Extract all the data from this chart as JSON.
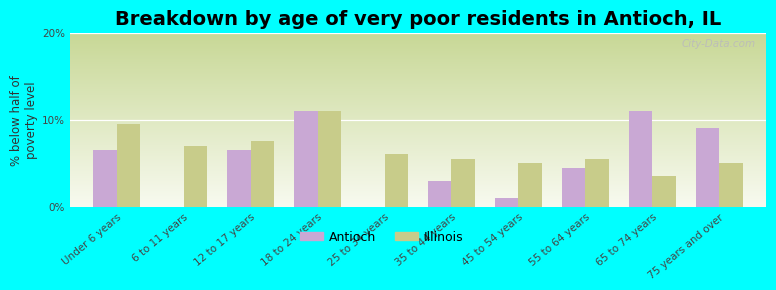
{
  "title": "Breakdown by age of very poor residents in Antioch, IL",
  "ylabel": "% below half of\npoverty level",
  "categories": [
    "Under 6 years",
    "6 to 11 years",
    "12 to 17 years",
    "18 to 24 years",
    "25 to 34 years",
    "35 to 44 years",
    "45 to 54 years",
    "55 to 64 years",
    "65 to 74 years",
    "75 years and over"
  ],
  "antioch_values": [
    6.5,
    0.0,
    6.5,
    11.0,
    0.0,
    3.0,
    1.0,
    4.5,
    11.0,
    9.0
  ],
  "illinois_values": [
    9.5,
    7.0,
    7.5,
    11.0,
    6.0,
    5.5,
    5.0,
    5.5,
    3.5,
    5.0
  ],
  "antioch_color": "#c9a8d4",
  "illinois_color": "#c8cc8a",
  "outer_background": "#00ffff",
  "gradient_top": "#c8d896",
  "gradient_bottom": "#f8faf0",
  "ylim": [
    0,
    20
  ],
  "yticks": [
    0,
    10,
    20
  ],
  "ytick_labels": [
    "0%",
    "10%",
    "20%"
  ],
  "bar_width": 0.35,
  "title_fontsize": 14,
  "axis_fontsize": 8.5,
  "tick_fontsize": 7.5,
  "legend_labels": [
    "Antioch",
    "Illinois"
  ],
  "watermark": "City-Data.com"
}
